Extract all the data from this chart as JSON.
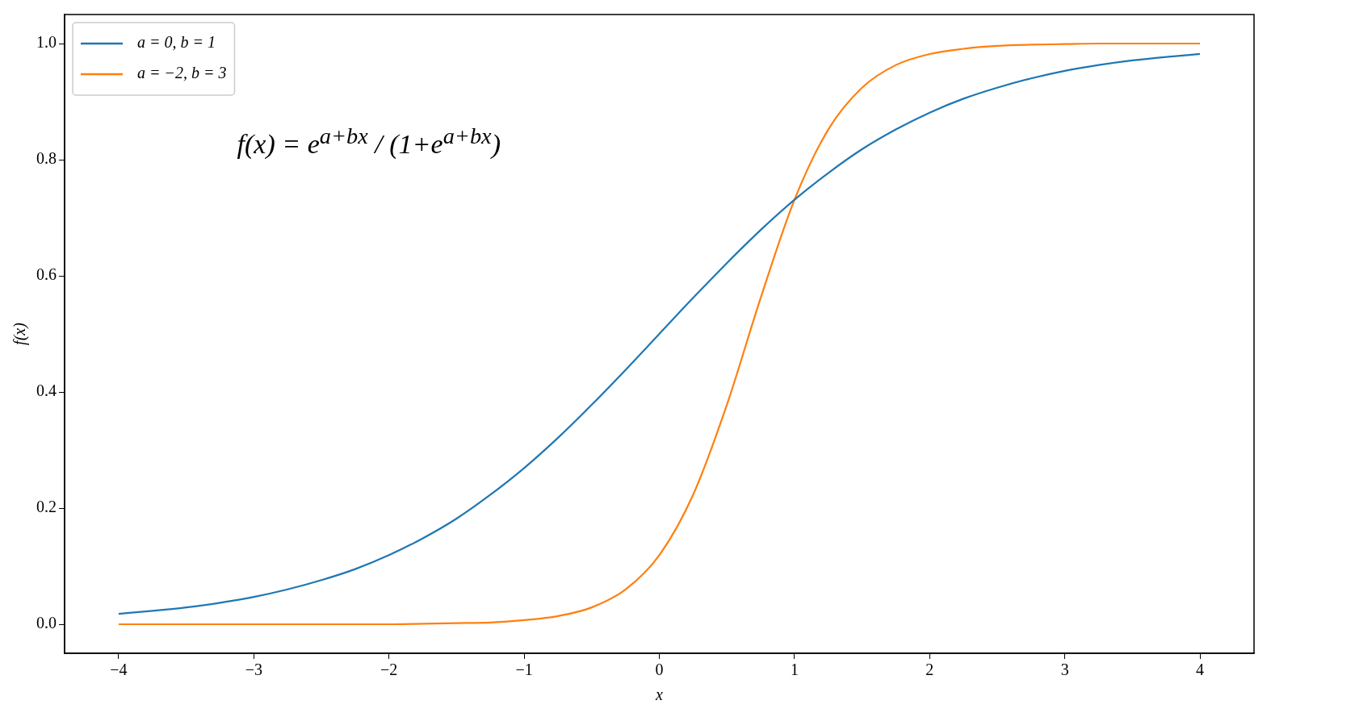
{
  "chart_data": {
    "type": "line",
    "xlabel": "x",
    "ylabel": "f(x)",
    "x": [
      -4,
      -3.75,
      -3.5,
      -3.25,
      -3,
      -2.75,
      -2.5,
      -2.25,
      -2,
      -1.75,
      -1.5,
      -1.25,
      -1,
      -0.75,
      -0.5,
      -0.25,
      0,
      0.25,
      0.5,
      0.75,
      1,
      1.25,
      1.5,
      1.75,
      2,
      2.25,
      2.5,
      2.75,
      3,
      3.25,
      3.5,
      3.75,
      4
    ],
    "series": [
      {
        "name": "a = 0, b = 1",
        "color": "#1f77b4",
        "values": [
          0.018,
          0.023,
          0.029,
          0.037,
          0.047,
          0.06,
          0.076,
          0.095,
          0.119,
          0.148,
          0.182,
          0.223,
          0.269,
          0.321,
          0.378,
          0.438,
          0.5,
          0.562,
          0.622,
          0.679,
          0.731,
          0.777,
          0.818,
          0.852,
          0.881,
          0.905,
          0.924,
          0.94,
          0.953,
          0.963,
          0.971,
          0.977,
          0.982
        ]
      },
      {
        "name": "a = −2, b = 3",
        "color": "#ff7f0e",
        "values": [
          0,
          0,
          0,
          0,
          0,
          0,
          0,
          0,
          0,
          0.001,
          0.002,
          0.003,
          0.007,
          0.014,
          0.029,
          0.06,
          0.119,
          0.223,
          0.378,
          0.562,
          0.731,
          0.852,
          0.924,
          0.963,
          0.982,
          0.991,
          0.996,
          0.998,
          0.999,
          1,
          1,
          1,
          1
        ]
      }
    ],
    "xlim": [
      -4.4,
      4.4
    ],
    "ylim": [
      -0.05,
      1.05
    ],
    "xticks": [
      {
        "value": -4,
        "label": "−4"
      },
      {
        "value": -3,
        "label": "−3"
      },
      {
        "value": -2,
        "label": "−2"
      },
      {
        "value": -1,
        "label": "−1"
      },
      0,
      1,
      2,
      3,
      4
    ],
    "yticks": [
      {
        "value": 0,
        "label": "0.0"
      },
      {
        "value": 0.2,
        "label": "0.2"
      },
      {
        "value": 0.4,
        "label": "0.4"
      },
      {
        "value": 0.6,
        "label": "0.6"
      },
      {
        "value": 0.8,
        "label": "0.8"
      },
      {
        "value": 1,
        "label": "1.0"
      }
    ],
    "annotations": [
      "f(x) = e$^{a+bx}$ / (1+e$^{a+bx}$)"
    ],
    "legend": "top left",
    "grid": false,
    "marker": "none",
    "line_style": "solid"
  }
}
